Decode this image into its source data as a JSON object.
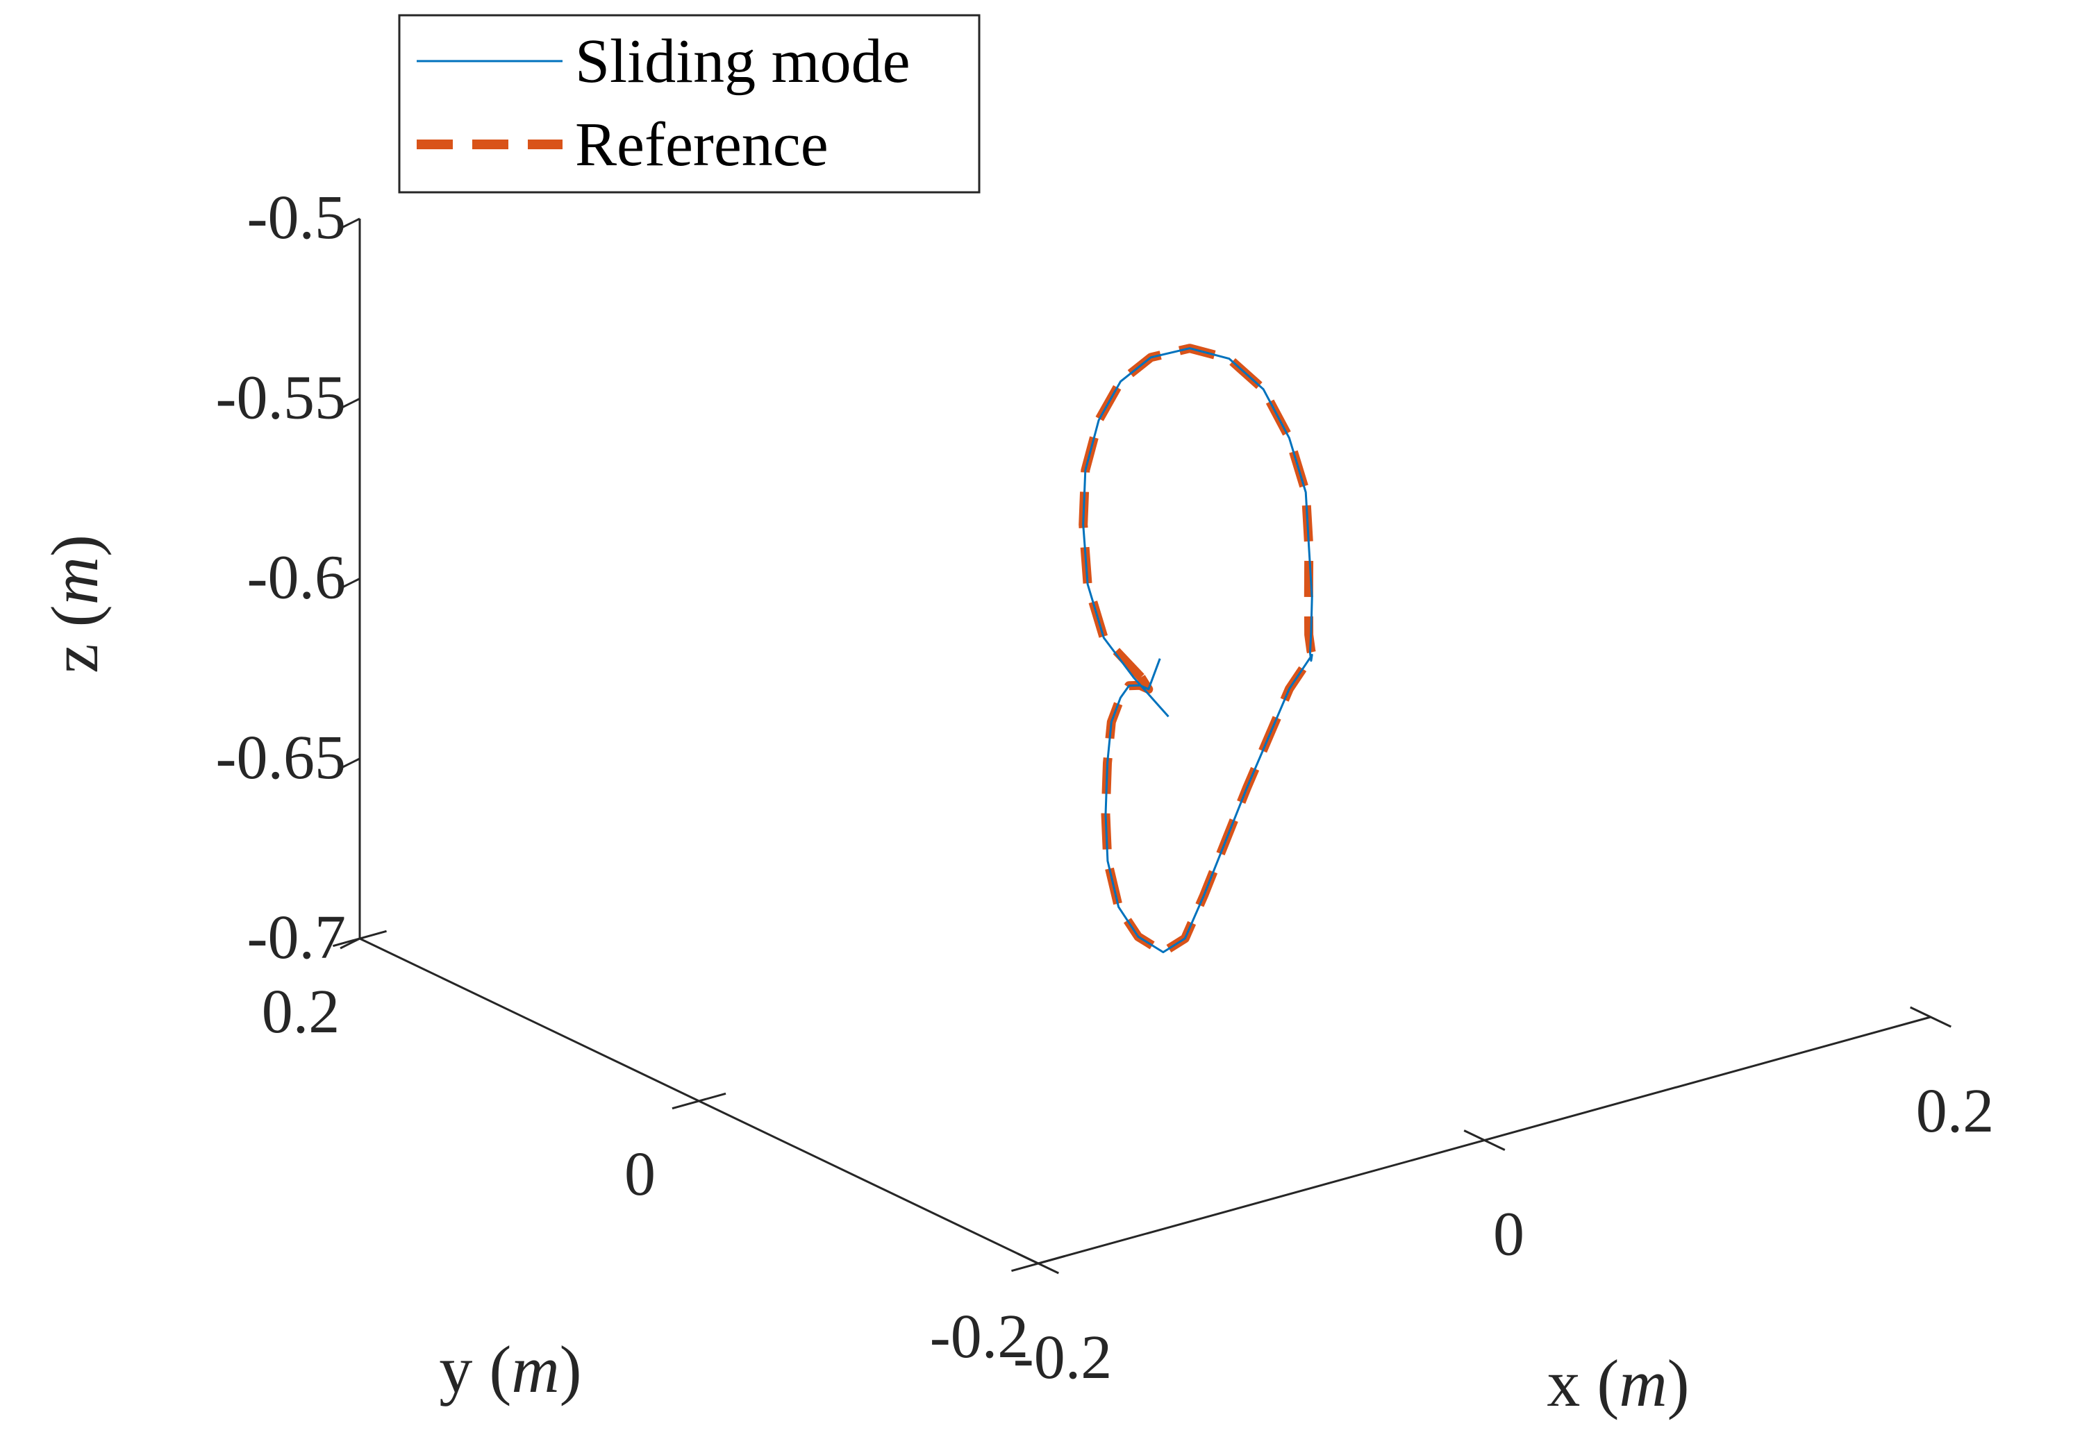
{
  "chart_data": {
    "type": "line",
    "projection": "3d",
    "title": "",
    "xlabel": "x (m)",
    "ylabel": "y (m)",
    "zlabel": "z (m)",
    "xlabel_parts": {
      "name": "x",
      "unit": "m"
    },
    "ylabel_parts": {
      "name": "y",
      "unit": "m"
    },
    "zlabel_parts": {
      "name": "z",
      "unit": "m"
    },
    "xlim": [
      -0.2,
      0.2
    ],
    "ylim": [
      -0.2,
      0.2
    ],
    "zlim": [
      -0.7,
      -0.5
    ],
    "x_ticks": [
      -0.2,
      0,
      0.2
    ],
    "y_ticks": [
      -0.2,
      0,
      0.2
    ],
    "z_ticks": [
      -0.7,
      -0.65,
      -0.6,
      -0.55,
      -0.5
    ],
    "x_tick_labels": [
      "-0.2",
      "0",
      "0.2"
    ],
    "y_tick_labels": [
      "-0.2",
      "0",
      "0.2"
    ],
    "z_tick_labels": [
      "-0.7",
      "-0.65",
      "-0.6",
      "-0.55",
      "-0.5"
    ],
    "grid": false,
    "legend_position": "top-left",
    "series": [
      {
        "name": "Sliding mode",
        "color": "#0072BD",
        "style": "solid",
        "points": [
          [
            -0.02,
            -0.04,
            -0.615
          ],
          [
            -0.028,
            -0.03,
            -0.605
          ],
          [
            -0.03,
            -0.015,
            -0.597
          ],
          [
            -0.022,
            0.005,
            -0.588
          ],
          [
            -0.005,
            0.03,
            -0.58
          ],
          [
            0.015,
            0.055,
            -0.574
          ],
          [
            0.04,
            0.08,
            -0.57
          ],
          [
            0.065,
            0.1,
            -0.568
          ],
          [
            0.09,
            0.115,
            -0.569
          ],
          [
            0.115,
            0.125,
            -0.573
          ],
          [
            0.135,
            0.128,
            -0.58
          ],
          [
            0.148,
            0.125,
            -0.59
          ],
          [
            0.152,
            0.115,
            -0.602
          ],
          [
            0.148,
            0.1,
            -0.613
          ],
          [
            0.138,
            0.085,
            -0.623
          ],
          [
            0.128,
            0.07,
            -0.632
          ],
          [
            0.12,
            0.06,
            -0.638
          ],
          [
            0.118,
            0.058,
            -0.643
          ],
          [
            0.12,
            0.06,
            -0.646
          ],
          [
            0.128,
            0.07,
            -0.648
          ],
          [
            0.095,
            0.04,
            -0.645
          ],
          [
            0.055,
            0.0,
            -0.643
          ],
          [
            0.015,
            -0.04,
            -0.641
          ],
          [
            -0.025,
            -0.08,
            -0.64
          ],
          [
            -0.065,
            -0.12,
            -0.639
          ],
          [
            -0.1,
            -0.155,
            -0.637
          ],
          [
            -0.125,
            -0.175,
            -0.632
          ],
          [
            -0.14,
            -0.18,
            -0.624
          ],
          [
            -0.145,
            -0.175,
            -0.616
          ],
          [
            -0.14,
            -0.162,
            -0.607
          ],
          [
            -0.128,
            -0.145,
            -0.6
          ],
          [
            -0.112,
            -0.125,
            -0.593
          ],
          [
            -0.095,
            -0.105,
            -0.589
          ],
          [
            -0.078,
            -0.088,
            -0.589
          ],
          [
            -0.062,
            -0.072,
            -0.592
          ],
          [
            -0.048,
            -0.06,
            -0.597
          ],
          [
            -0.035,
            -0.048,
            -0.603
          ],
          [
            -0.02,
            -0.035,
            -0.6
          ]
        ]
      },
      {
        "name": "Reference",
        "color": "#D95319",
        "style": "dashed",
        "points": [
          [
            -0.03,
            -0.037,
            -0.603
          ],
          [
            -0.03,
            -0.015,
            -0.597
          ],
          [
            -0.022,
            0.005,
            -0.588
          ],
          [
            -0.005,
            0.03,
            -0.58
          ],
          [
            0.015,
            0.055,
            -0.574
          ],
          [
            0.04,
            0.08,
            -0.57
          ],
          [
            0.065,
            0.1,
            -0.568
          ],
          [
            0.09,
            0.115,
            -0.569
          ],
          [
            0.115,
            0.125,
            -0.573
          ],
          [
            0.135,
            0.128,
            -0.58
          ],
          [
            0.148,
            0.125,
            -0.59
          ],
          [
            0.152,
            0.115,
            -0.602
          ],
          [
            0.148,
            0.1,
            -0.613
          ],
          [
            0.138,
            0.085,
            -0.623
          ],
          [
            0.128,
            0.072,
            -0.633
          ],
          [
            0.122,
            0.064,
            -0.64
          ],
          [
            0.126,
            0.068,
            -0.646
          ],
          [
            0.128,
            0.07,
            -0.648
          ],
          [
            0.095,
            0.04,
            -0.645
          ],
          [
            0.055,
            0.0,
            -0.643
          ],
          [
            0.015,
            -0.04,
            -0.641
          ],
          [
            -0.025,
            -0.08,
            -0.64
          ],
          [
            -0.065,
            -0.12,
            -0.639
          ],
          [
            -0.1,
            -0.155,
            -0.637
          ],
          [
            -0.125,
            -0.175,
            -0.632
          ],
          [
            -0.14,
            -0.18,
            -0.624
          ],
          [
            -0.145,
            -0.175,
            -0.616
          ],
          [
            -0.14,
            -0.162,
            -0.607
          ],
          [
            -0.128,
            -0.145,
            -0.6
          ],
          [
            -0.112,
            -0.125,
            -0.593
          ],
          [
            -0.095,
            -0.105,
            -0.589
          ],
          [
            -0.078,
            -0.088,
            -0.589
          ],
          [
            -0.062,
            -0.072,
            -0.592
          ],
          [
            -0.048,
            -0.06,
            -0.597
          ],
          [
            -0.035,
            -0.048,
            -0.603
          ],
          [
            -0.03,
            -0.037,
            -0.603
          ]
        ]
      }
    ]
  }
}
